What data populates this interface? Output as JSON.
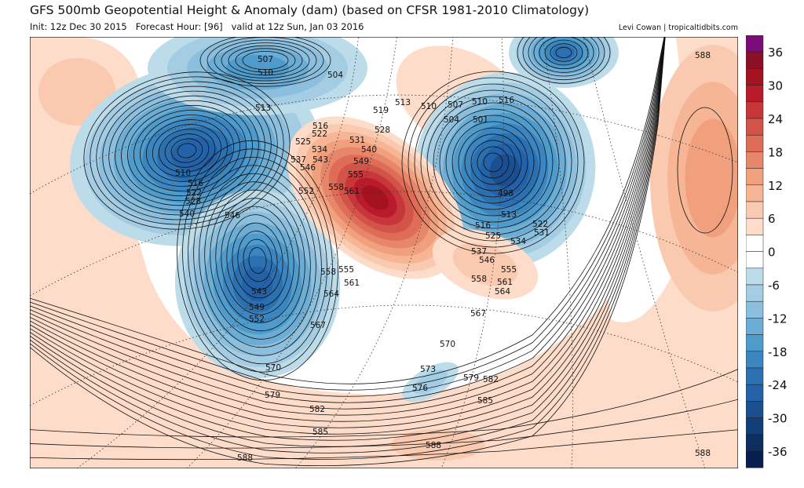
{
  "header": {
    "title": "GFS 500mb Geopotential Height & Anomaly (dam) (based on CFSR 1981-2010 Climatology)",
    "init": "Init: 12z Dec 30 2015",
    "forecast_hour": "Forecast Hour: [96]",
    "valid": "valid at 12z Sun, Jan 03 2016",
    "credit": "Levi Cowan | tropicaltidbits.com"
  },
  "colorbar": {
    "unit": "dam",
    "tick_labels": [
      "36",
      "30",
      "24",
      "18",
      "12",
      "6",
      "0",
      "-6",
      "-12",
      "-18",
      "-24",
      "-30",
      "-36"
    ],
    "colors": [
      "#7b0a7b",
      "#8a0f27",
      "#a3121f",
      "#b91b2c",
      "#c7373a",
      "#d25348",
      "#de6c56",
      "#e6866a",
      "#f0a07c",
      "#f6b595",
      "#f9cab0",
      "#fddcca",
      "#ffffff",
      "#ffffff",
      "#bddcea",
      "#a4cde4",
      "#8bbfdd",
      "#6badd4",
      "#4f9bcb",
      "#3b86c0",
      "#2b70b0",
      "#2361a8",
      "#1a4f90",
      "#133f78",
      "#0c2f60",
      "#081d50"
    ]
  },
  "contour_labels": [
    "507",
    "510",
    "504",
    "513",
    "516",
    "522",
    "525",
    "534",
    "537",
    "543",
    "546",
    "552",
    "558",
    "561",
    "531",
    "540",
    "549",
    "555",
    "528",
    "519",
    "513",
    "510",
    "507",
    "510",
    "516",
    "504",
    "501",
    "498",
    "513",
    "516",
    "522",
    "525",
    "531",
    "534",
    "537",
    "546",
    "555",
    "558",
    "561",
    "564",
    "567",
    "570",
    "573",
    "576",
    "579",
    "582",
    "585",
    "588",
    "588",
    "588",
    "588",
    "585",
    "582",
    "579",
    "570",
    "567",
    "564",
    "561",
    "558",
    "555",
    "510",
    "516",
    "522",
    "528",
    "540",
    "546",
    "543",
    "549",
    "552"
  ]
}
